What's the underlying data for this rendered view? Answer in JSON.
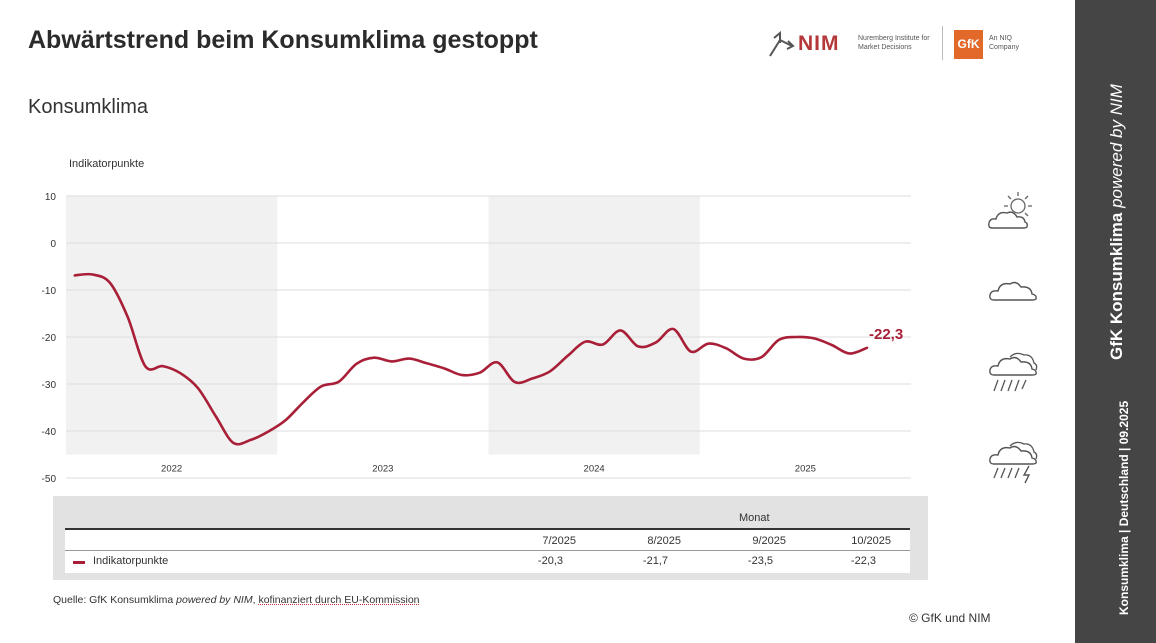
{
  "header": {
    "title": "Abwärtstrend beim Konsumklima gestoppt",
    "subtitle": "Konsumklima",
    "nim_logo_text": "NIM",
    "nim_logo_sub": "Nuremberg Institute for Market Decisions",
    "gfk_logo_text": "GfK",
    "gfk_logo_sub": "An NIQ Company"
  },
  "chart_data": {
    "type": "line",
    "ylabel": "Indikatorpunkte",
    "ylim": [
      -50,
      10
    ],
    "yticks": [
      10,
      0,
      -10,
      -20,
      -30,
      -40,
      -50
    ],
    "year_labels": [
      "2022",
      "2023",
      "2024",
      "2025"
    ],
    "shaded_years": [
      "2022",
      "2024"
    ],
    "grid": true,
    "series": [
      {
        "name": "Indikatorpunkte",
        "color": "#a81f37",
        "x": [
          "2022-01",
          "2022-02",
          "2022-03",
          "2022-04",
          "2022-05",
          "2022-06",
          "2022-07",
          "2022-08",
          "2022-09",
          "2022-10",
          "2022-11",
          "2022-12",
          "2023-01",
          "2023-02",
          "2023-03",
          "2023-04",
          "2023-05",
          "2023-06",
          "2023-07",
          "2023-08",
          "2023-09",
          "2023-10",
          "2023-11",
          "2023-12",
          "2024-01",
          "2024-02",
          "2024-03",
          "2024-04",
          "2024-05",
          "2024-06",
          "2024-07",
          "2024-08",
          "2024-09",
          "2024-10",
          "2024-11",
          "2024-12",
          "2025-01",
          "2025-02",
          "2025-03",
          "2025-04",
          "2025-05",
          "2025-06",
          "2025-07",
          "2025-08",
          "2025-09",
          "2025-10"
        ],
        "values": [
          -6.9,
          -6.7,
          -8.5,
          -15.7,
          -26.2,
          -26.2,
          -27.7,
          -30.9,
          -36.8,
          -42.5,
          -41.9,
          -40.1,
          -37.6,
          -33.8,
          -30.5,
          -29.5,
          -25.7,
          -24.4,
          -25.2,
          -24.6,
          -25.6,
          -26.7,
          -28.1,
          -27.6,
          -25.4,
          -29.6,
          -28.8,
          -27.3,
          -24.0,
          -21.0,
          -21.6,
          -18.6,
          -22.0,
          -21.2,
          -18.3,
          -23.1,
          -21.4,
          -22.4,
          -24.6,
          -24.3,
          -20.6,
          -20.0,
          -20.3,
          -21.7,
          -23.5,
          -22.3
        ]
      }
    ],
    "last_value_label": "-22,3"
  },
  "table": {
    "group_header": "Monat",
    "columns": [
      "7/2025",
      "8/2025",
      "9/2025",
      "10/2025"
    ],
    "row_label": "Indikatorpunkte",
    "values": [
      "-20,3",
      "-21,7",
      "-23,5",
      "-22,3"
    ]
  },
  "source": {
    "prefix": "Quelle: GfK Konsumklima ",
    "italic": "powered by NIM",
    "comma": ", ",
    "financed": "kofinanziert durch EU-Kommission"
  },
  "copyright": "© GfK und NIM",
  "weather_icons": [
    "sun-cloud-icon",
    "cloud-icon",
    "rain-cloud-icon",
    "thunderstorm-cloud-icon"
  ],
  "sidebar": {
    "main_bold": "GfK Konsumklima ",
    "main_italic": "powered by NIM",
    "sub": "Konsumklima | Deutschland | 09.2025"
  }
}
